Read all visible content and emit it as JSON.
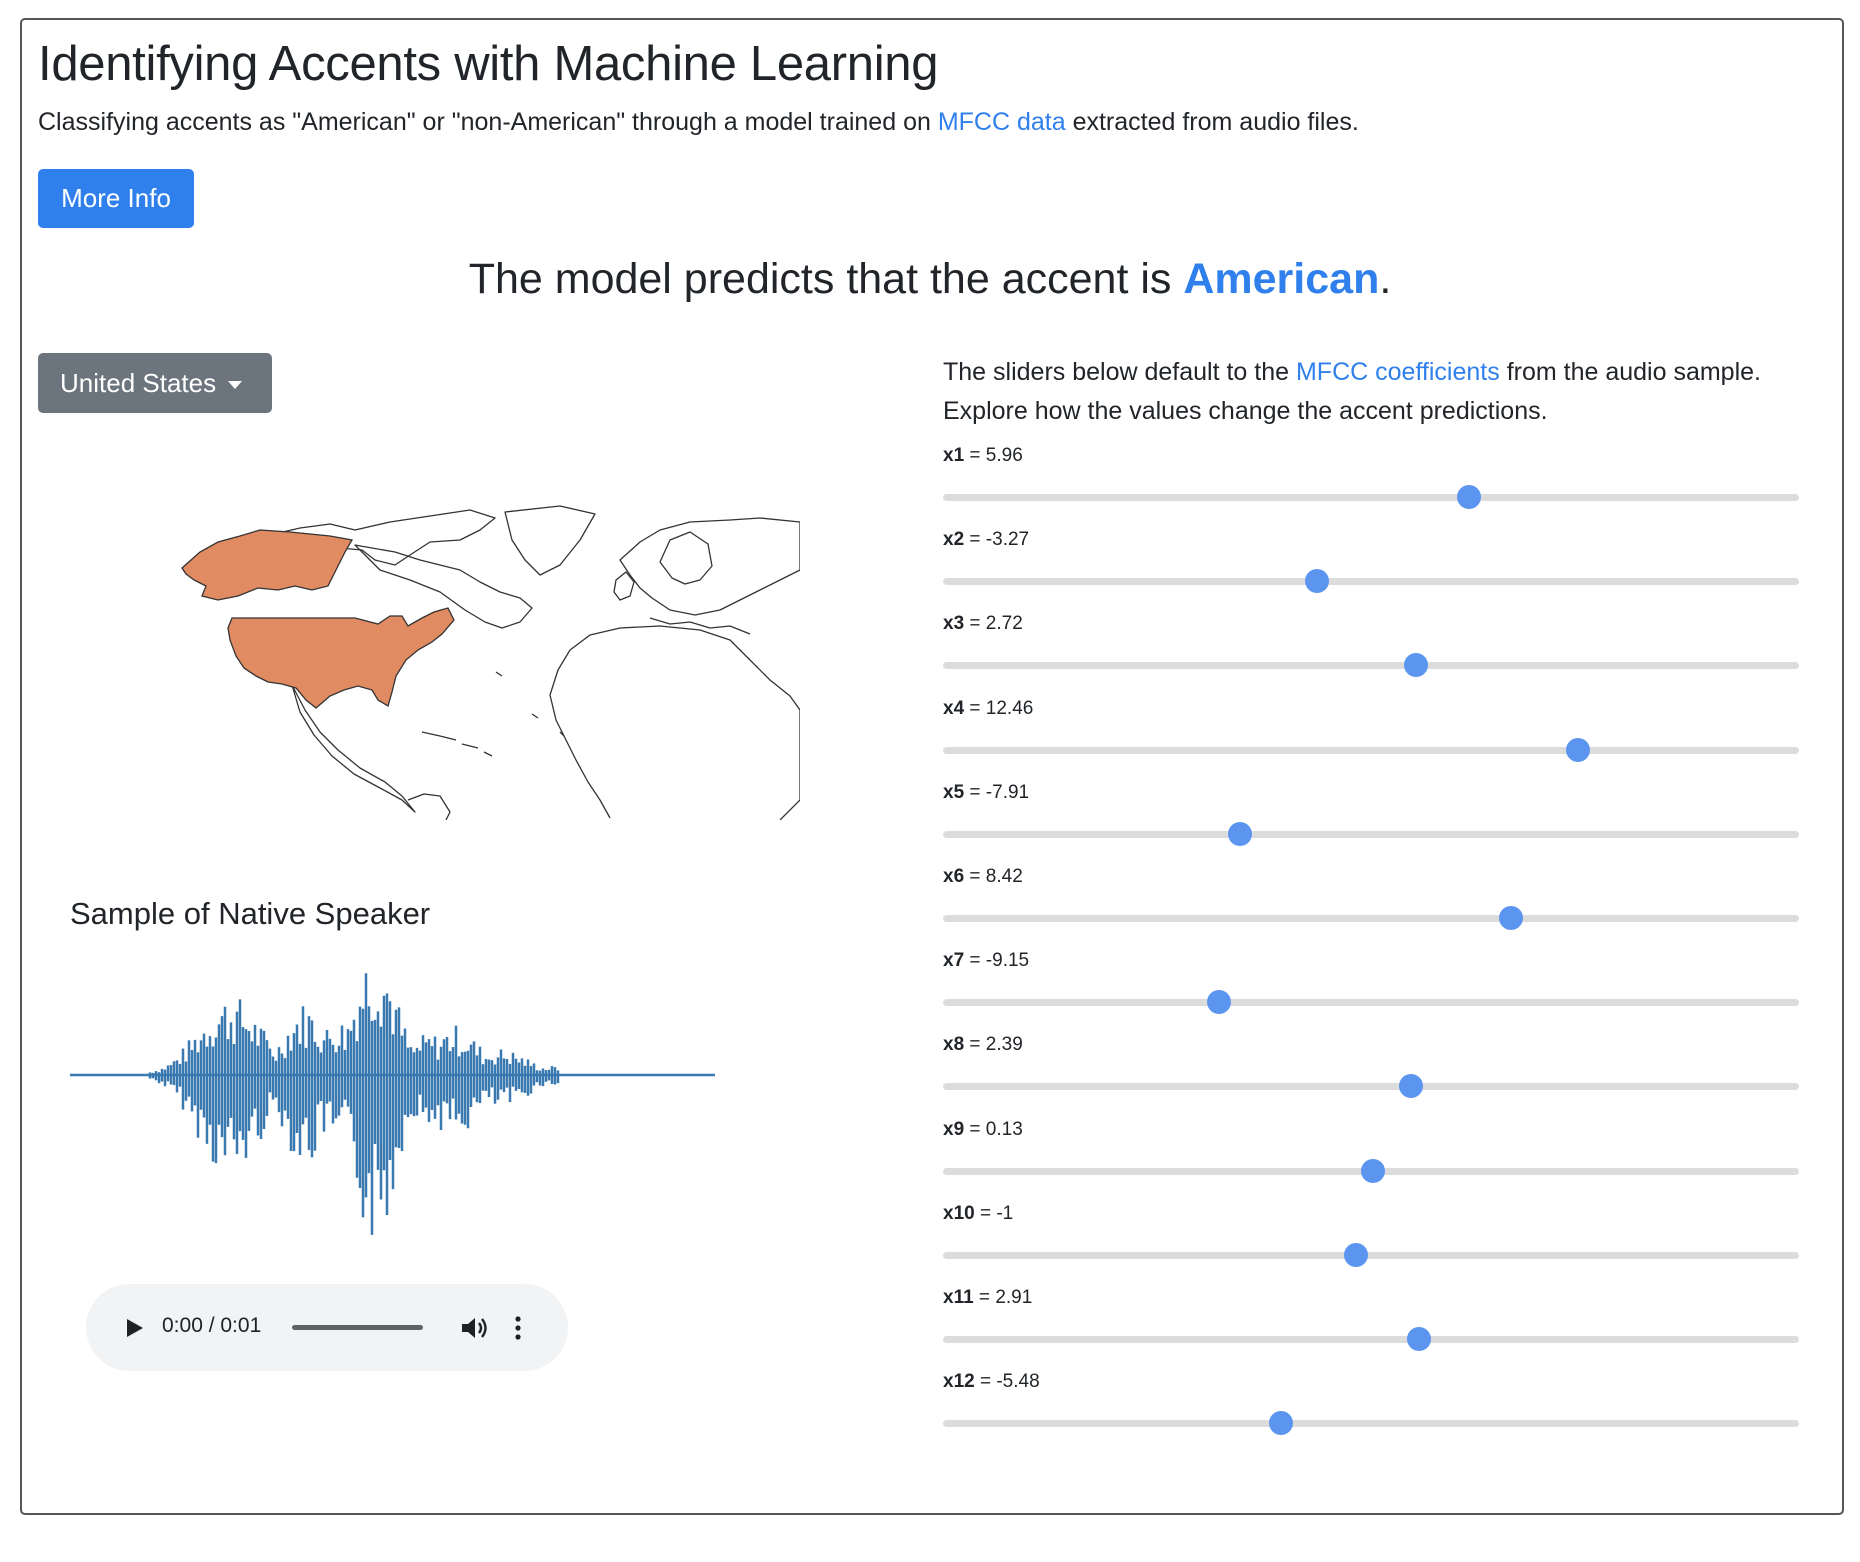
{
  "header": {
    "title": "Identifying Accents with Machine Learning",
    "subtitle_prefix": "Classifying accents as \"American\" or \"non-American\" through a model trained on ",
    "subtitle_link": "MFCC data",
    "subtitle_suffix": " extracted from audio files.",
    "more_info_label": "More Info"
  },
  "prediction": {
    "prefix": "The model predicts that the accent is ",
    "result": "American",
    "suffix": "."
  },
  "country_dropdown": {
    "selected": "United States"
  },
  "map": {
    "highlight_color": "#e08b62",
    "highlighted_country": "United States"
  },
  "sample": {
    "title": "Sample of Native Speaker",
    "waveform_color": "#3a78b0"
  },
  "audio_player": {
    "time": "0:00 / 0:01"
  },
  "sliders_panel": {
    "intro_prefix": "The sliders below default to the ",
    "intro_link": "MFCC coefficients",
    "intro_suffix": " from the audio sample. Explore how the values change the accent predictions.",
    "accent_color": "#5b95f0"
  },
  "sliders": [
    {
      "name": "x1",
      "value": "5.96",
      "level": 0.615
    },
    {
      "name": "x2",
      "value": "-3.27",
      "level": 0.437
    },
    {
      "name": "x3",
      "value": "2.72",
      "level": 0.552
    },
    {
      "name": "x4",
      "value": "12.46",
      "level": 0.742
    },
    {
      "name": "x5",
      "value": "-7.91",
      "level": 0.347
    },
    {
      "name": "x6",
      "value": "8.42",
      "level": 0.664
    },
    {
      "name": "x7",
      "value": "-9.15",
      "level": 0.322
    },
    {
      "name": "x8",
      "value": "2.39",
      "level": 0.547
    },
    {
      "name": "x9",
      "value": "0.13",
      "level": 0.502
    },
    {
      "name": "x10",
      "value": "-1",
      "level": 0.482
    },
    {
      "name": "x11",
      "value": "2.91",
      "level": 0.556
    },
    {
      "name": "x12",
      "value": "-5.48",
      "level": 0.395
    }
  ]
}
